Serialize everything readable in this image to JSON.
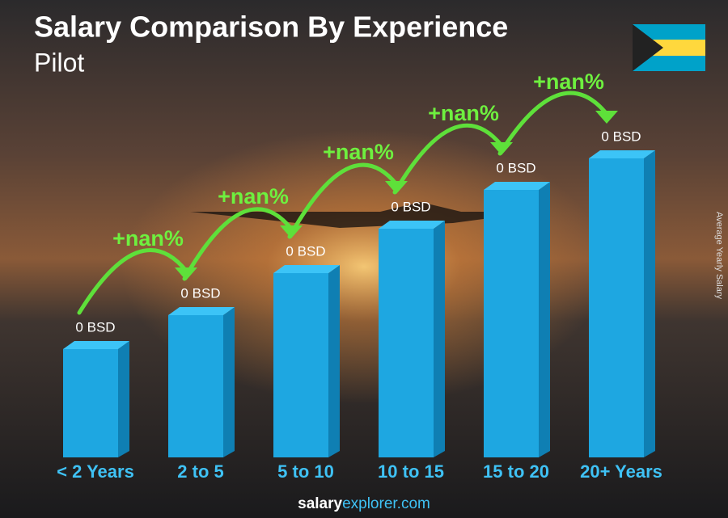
{
  "chart_data": {
    "type": "bar",
    "title": "Salary Comparison By Experience",
    "subtitle": "Pilot",
    "y_axis_label": "Average Yearly Salary",
    "categories": [
      "< 2 Years",
      "2 to 5",
      "5 to 10",
      "10 to 15",
      "15 to 20",
      "20+ Years"
    ],
    "values": [
      0,
      0,
      0,
      0,
      0,
      0
    ],
    "value_labels": [
      "0 BSD",
      "0 BSD",
      "0 BSD",
      "0 BSD",
      "0 BSD",
      "0 BSD"
    ],
    "annotations": [
      "+nan%",
      "+nan%",
      "+nan%",
      "+nan%",
      "+nan%"
    ],
    "color": "#1ea7e1"
  },
  "footer": {
    "brand": "salary",
    "domain": "explorer.com"
  }
}
